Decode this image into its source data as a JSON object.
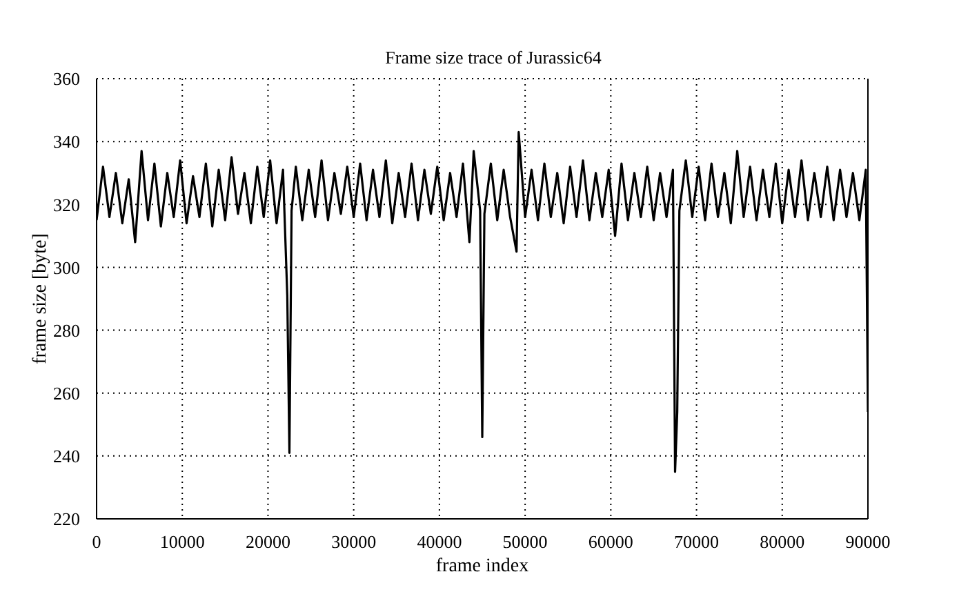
{
  "chart_data": {
    "type": "line",
    "title": "Frame size trace of Jurassic64",
    "xlabel": "frame index",
    "ylabel": "frame size [byte]",
    "xlim": [
      0,
      90000
    ],
    "xticks": [
      0,
      10000,
      20000,
      30000,
      40000,
      50000,
      60000,
      70000,
      80000,
      90000
    ],
    "ylim": [
      220,
      360
    ],
    "yticks": [
      220,
      240,
      260,
      280,
      300,
      320,
      340,
      360
    ],
    "grid": true,
    "legend": false,
    "marker": "none",
    "line_style": "solid",
    "series": [
      {
        "color": "#000000",
        "x": [
          0,
          750,
          1500,
          2250,
          3000,
          3750,
          4500,
          5250,
          6000,
          6750,
          7500,
          8250,
          9000,
          9750,
          10500,
          11250,
          12000,
          12750,
          13500,
          14250,
          15000,
          15750,
          16500,
          17250,
          18000,
          18750,
          19500,
          20250,
          21000,
          21750,
          22250,
          22500,
          22750,
          23250,
          24000,
          24750,
          25500,
          26250,
          27000,
          27750,
          28500,
          29250,
          30000,
          30750,
          31500,
          32250,
          33000,
          33750,
          34500,
          35250,
          36000,
          36750,
          37500,
          38250,
          39000,
          39750,
          40500,
          41250,
          42000,
          42750,
          43500,
          44000,
          44750,
          45000,
          45250,
          46000,
          46750,
          47500,
          48250,
          49000,
          49250,
          50000,
          50750,
          51500,
          52250,
          53000,
          53750,
          54500,
          55250,
          56000,
          56750,
          57500,
          58250,
          59000,
          59750,
          60500,
          61250,
          62000,
          62750,
          63500,
          64250,
          65000,
          65750,
          66500,
          67250,
          67500,
          67750,
          68000,
          68750,
          69500,
          70250,
          71000,
          71750,
          72500,
          73250,
          74000,
          74750,
          75500,
          76250,
          77000,
          77750,
          78500,
          79250,
          80000,
          80750,
          81500,
          82250,
          83000,
          83750,
          84500,
          85250,
          86000,
          86750,
          87500,
          88250,
          89000,
          89750,
          90000
        ],
        "values": [
          315,
          332,
          316,
          330,
          314,
          328,
          308,
          337,
          315,
          333,
          313,
          330,
          316,
          334,
          314,
          329,
          316,
          333,
          313,
          331,
          315,
          335,
          317,
          330,
          314,
          332,
          316,
          334,
          314,
          331,
          291,
          241,
          318,
          332,
          315,
          331,
          316,
          334,
          315,
          330,
          317,
          332,
          316,
          333,
          315,
          331,
          316,
          334,
          314,
          330,
          316,
          333,
          315,
          331,
          317,
          332,
          315,
          330,
          316,
          333,
          308,
          337,
          318,
          246,
          317,
          333,
          315,
          331,
          316,
          305,
          343,
          316,
          331,
          315,
          333,
          316,
          330,
          314,
          332,
          316,
          334,
          315,
          330,
          316,
          331,
          310,
          333,
          315,
          330,
          316,
          332,
          315,
          330,
          316,
          331,
          235,
          254,
          318,
          334,
          316,
          332,
          315,
          333,
          316,
          330,
          314,
          337,
          316,
          332,
          315,
          331,
          316,
          333,
          314,
          331,
          316,
          334,
          315,
          330,
          316,
          332,
          315,
          331,
          316,
          330,
          315,
          331,
          254
        ]
      }
    ]
  }
}
